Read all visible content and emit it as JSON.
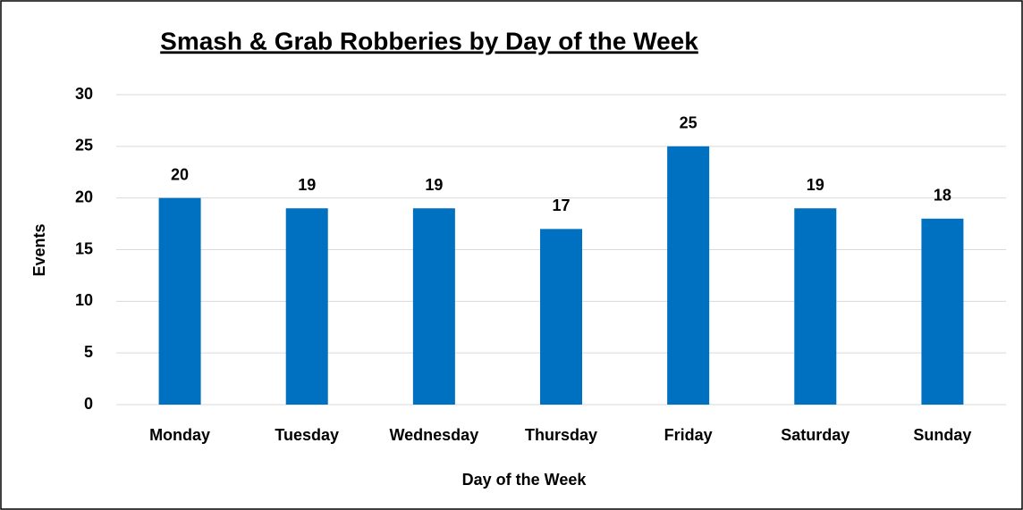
{
  "chart_data": {
    "type": "bar",
    "title": "Smash & Grab Robberies by Day of the Week",
    "x_label": "Day of the Week",
    "y_label": "Events",
    "categories": [
      "Monday",
      "Tuesday",
      "Wednesday",
      "Thursday",
      "Friday",
      "Saturday",
      "Sunday"
    ],
    "values": [
      20,
      19,
      19,
      17,
      25,
      19,
      18
    ],
    "color": "#0070c0",
    "ylim": [
      0,
      30
    ],
    "yticks": [
      0,
      5,
      10,
      15,
      20,
      25,
      30
    ],
    "grid": true
  }
}
